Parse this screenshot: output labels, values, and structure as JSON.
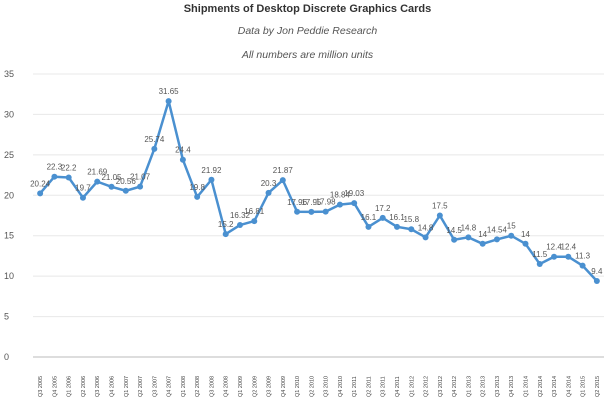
{
  "chart_data": {
    "type": "line",
    "title": "Shipments of Desktop Discrete Graphics Cards",
    "subtitle": "Data by Jon Peddie Research",
    "note": "All numbers are million units",
    "xlabel": "",
    "ylabel": "",
    "ylim": [
      0,
      35
    ],
    "yticks": [
      0,
      5,
      10,
      15,
      20,
      25,
      30,
      35
    ],
    "grid": true,
    "line_color": "#4a90d0",
    "categories": [
      "Q3 2005",
      "Q4 2005",
      "Q1 2006",
      "Q2 2006",
      "Q3 2006",
      "Q4 2006",
      "Q1 2007",
      "Q2 2007",
      "Q3 2007",
      "Q4 2007",
      "Q1 2008",
      "Q2 2008",
      "Q3 2008",
      "Q4 2008",
      "Q1 2009",
      "Q2 2009",
      "Q3 2009",
      "Q4 2009",
      "Q1 2010",
      "Q2 2010",
      "Q3 2010",
      "Q4 2010",
      "Q1 2011",
      "Q2 2011",
      "Q3 2011",
      "Q4 2011",
      "Q1 2012",
      "Q2 2012",
      "Q3 2012",
      "Q4 2012",
      "Q1 2013",
      "Q2 2013",
      "Q3 2013",
      "Q4 2013",
      "Q1 2014",
      "Q2 2014",
      "Q3 2014",
      "Q4 2014",
      "Q1 2015",
      "Q2 2015"
    ],
    "series": [
      {
        "name": "Shipments",
        "values": [
          20.24,
          22.3,
          22.2,
          19.7,
          21.69,
          21.05,
          20.56,
          21.07,
          25.74,
          31.65,
          24.4,
          19.8,
          21.92,
          15.2,
          16.32,
          16.81,
          20.3,
          21.87,
          17.96,
          17.95,
          17.98,
          18.84,
          19.03,
          16.1,
          17.2,
          16.1,
          15.8,
          14.8,
          17.5,
          14.5,
          14.8,
          14,
          14.54,
          15,
          14,
          11.5,
          12.4,
          12.4,
          11.3,
          9.4
        ],
        "labels": [
          "20.24",
          "22.3",
          "22.2",
          "19.7",
          "21.69",
          "21.05",
          "20.56",
          "21.07",
          "25.74",
          "31.65",
          "24.4",
          "19.8",
          "21.92",
          "15.2",
          "16.32",
          "16.81",
          "20.3",
          "21.87",
          "17.96",
          "17.95",
          "17.98",
          "18.84",
          "19.03",
          "16.1",
          "17.2",
          "16.1",
          "15.8",
          "14.8",
          "17.5",
          "14.5",
          "14.8",
          "14",
          "14.54",
          "15",
          "14",
          "11.5",
          "12.4",
          "12.4",
          "11.3",
          "9.4"
        ]
      }
    ]
  }
}
